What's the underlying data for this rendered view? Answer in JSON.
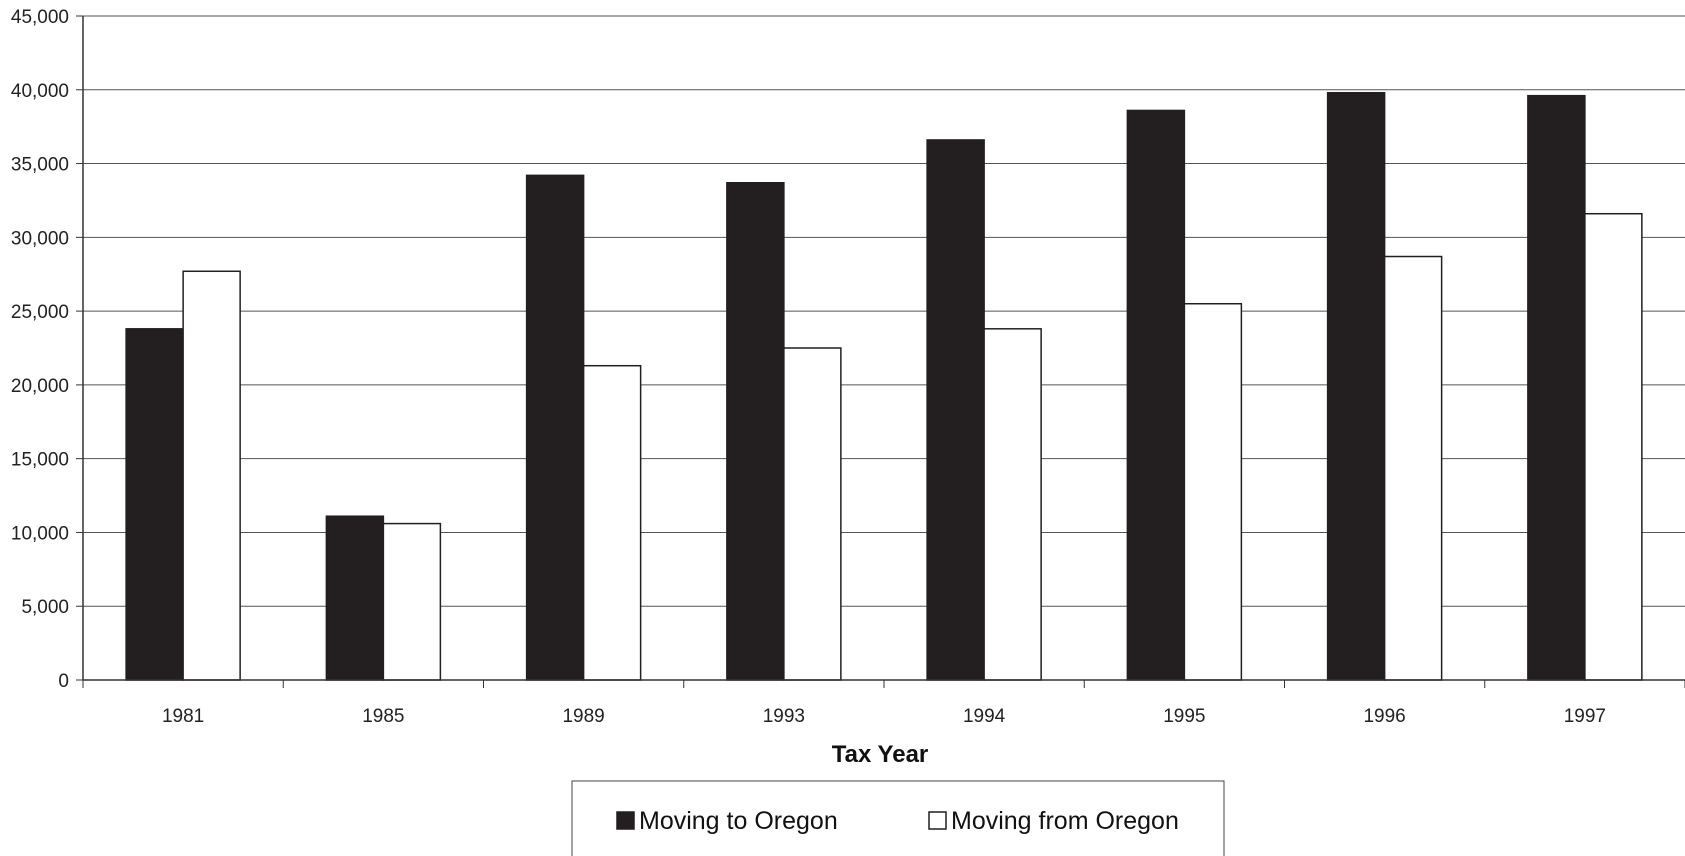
{
  "chart_data": {
    "type": "bar",
    "title": "",
    "xlabel": "Tax Year",
    "ylabel": "",
    "categories": [
      "1981",
      "1985",
      "1989",
      "1993",
      "1994",
      "1995",
      "1996",
      "1997"
    ],
    "series": [
      {
        "name": "Moving to Oregon",
        "values": [
          23800,
          11100,
          34200,
          33700,
          36600,
          38600,
          39800,
          39600
        ],
        "color": "#231f20"
      },
      {
        "name": "Moving from Oregon",
        "values": [
          27700,
          10600,
          21300,
          22500,
          23800,
          25500,
          28700,
          31600
        ],
        "color": "#ffffff"
      }
    ],
    "ylim": [
      0,
      45000
    ],
    "yticks": [
      "0",
      "5,000",
      "10,000",
      "15,000",
      "20,000",
      "25,000",
      "30,000",
      "35,000",
      "40,000",
      "45,000"
    ],
    "grid": true,
    "legend_position": "bottom"
  }
}
